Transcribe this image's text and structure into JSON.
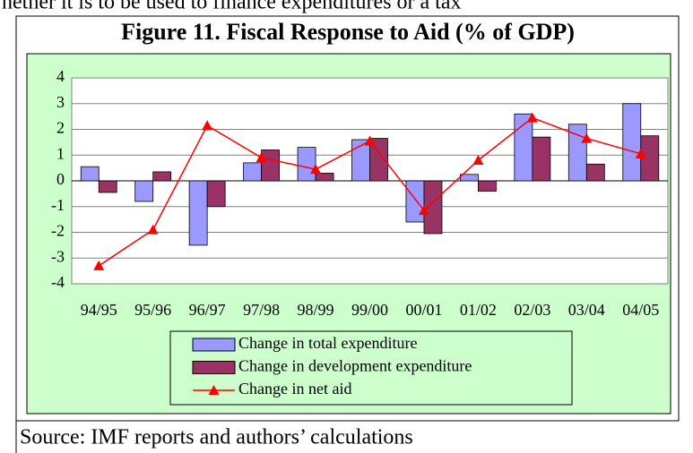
{
  "document": {
    "text_above": "hether it is to be used to finance expenditures or a tax",
    "source": "Source: IMF reports and authors’ calculations"
  },
  "chart_data": {
    "type": "bar",
    "title": "Figure 11. Fiscal Response to Aid (% of GDP)",
    "categories": [
      "94/95",
      "95/96",
      "96/97",
      "97/98",
      "98/99",
      "99/00",
      "00/01",
      "01/02",
      "02/03",
      "03/04",
      "04/05"
    ],
    "series": [
      {
        "name": "Change in total expenditure",
        "type": "bar",
        "color": "#9999ff",
        "values": [
          0.55,
          -0.8,
          -2.5,
          0.7,
          1.3,
          1.6,
          -1.6,
          0.25,
          2.6,
          2.2,
          3.0
        ]
      },
      {
        "name": "Change in development expenditure",
        "type": "bar",
        "color": "#993366",
        "values": [
          -0.45,
          0.35,
          -1.0,
          1.2,
          0.3,
          1.65,
          -2.05,
          -0.4,
          1.7,
          0.65,
          1.75
        ]
      },
      {
        "name": "Change in net aid",
        "type": "line",
        "color": "#ff0000",
        "values": [
          -3.3,
          -1.9,
          2.15,
          0.9,
          0.45,
          1.55,
          -1.15,
          0.8,
          2.45,
          1.65,
          1.05
        ]
      }
    ],
    "ylim": [
      -4,
      4
    ],
    "yticks": [
      -4,
      -3,
      -2,
      -1,
      0,
      1,
      2,
      3,
      4
    ],
    "grid": true,
    "legend": "bottom"
  }
}
